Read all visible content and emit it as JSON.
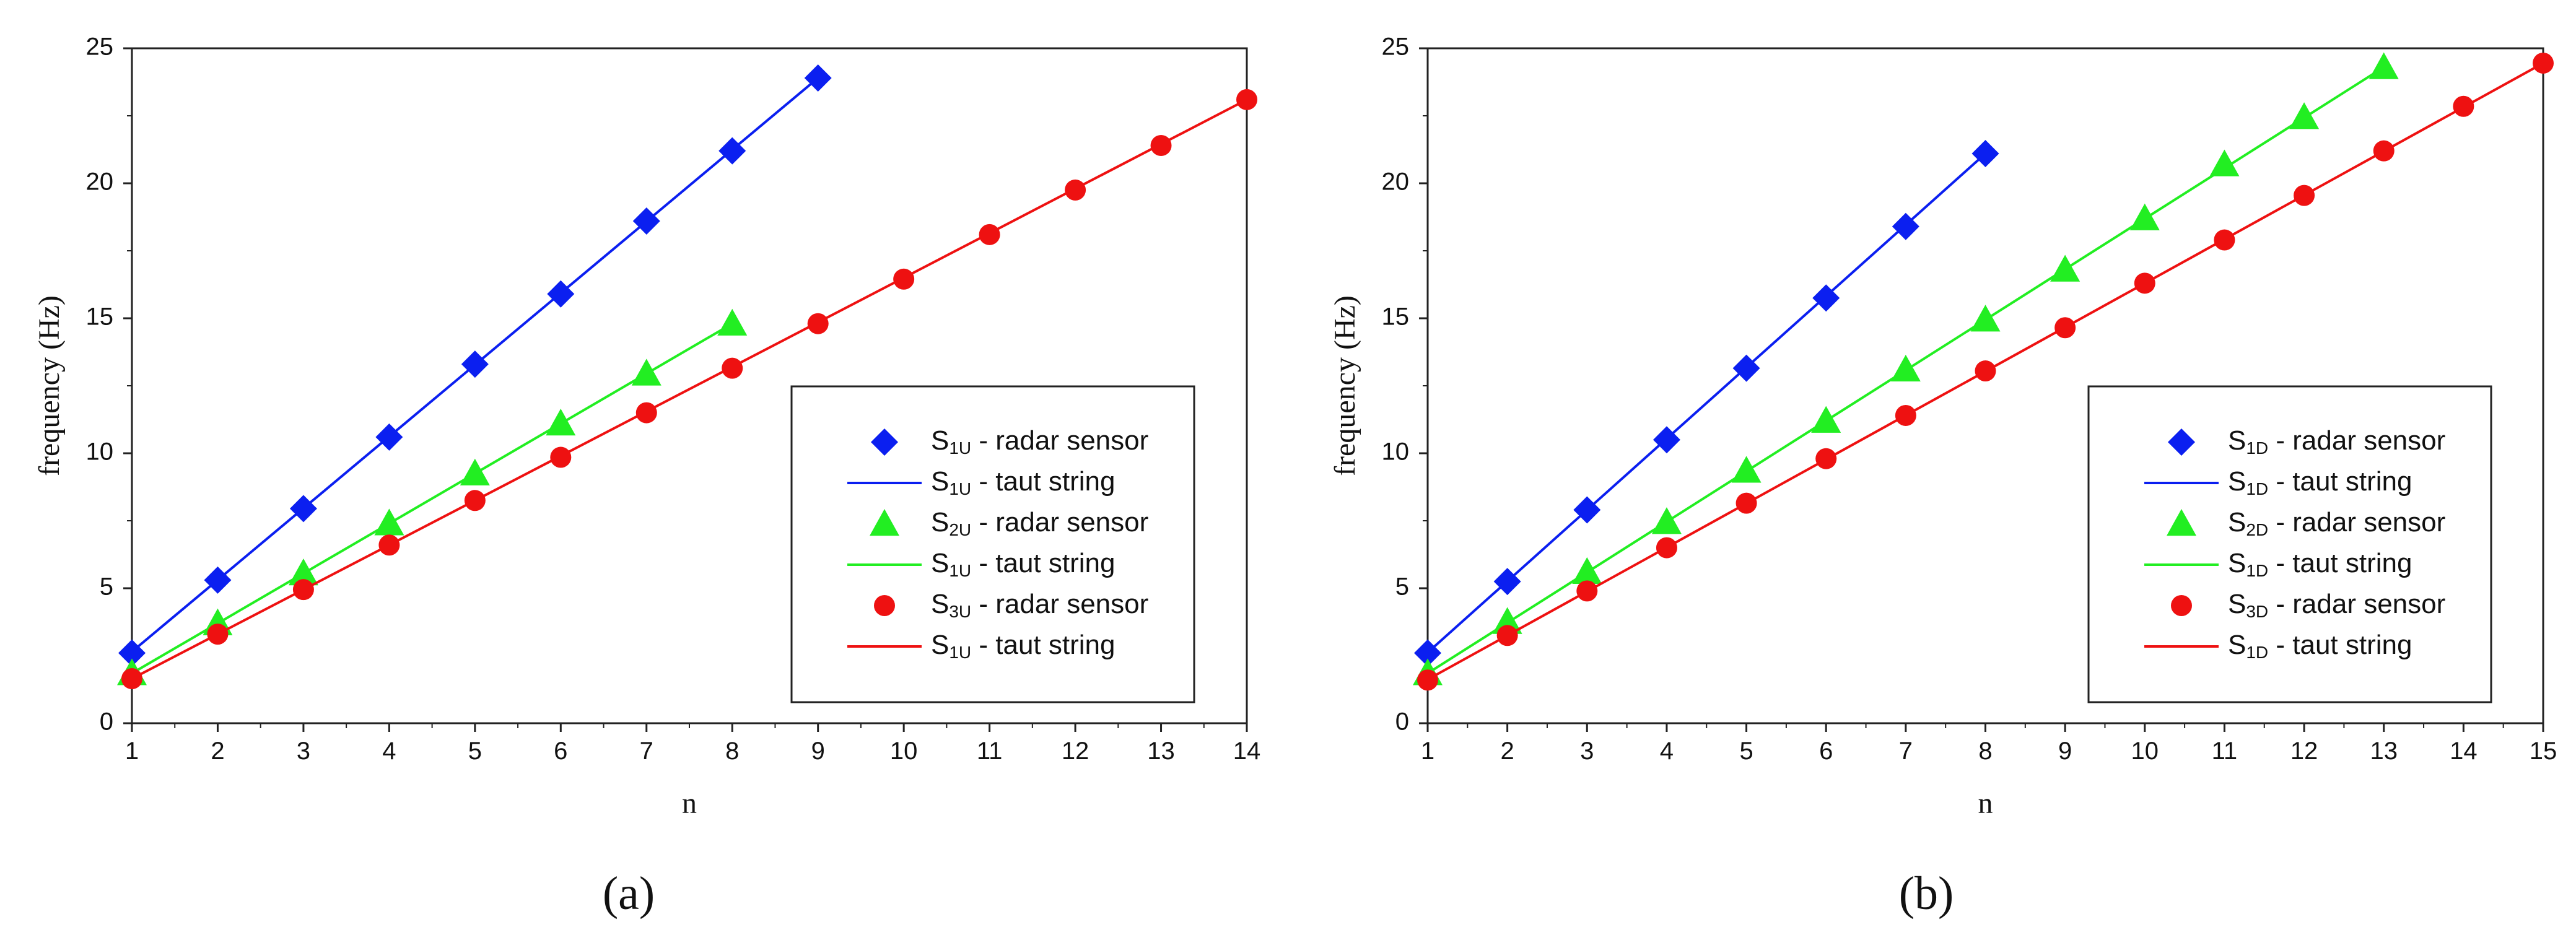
{
  "chart_data": [
    {
      "type": "line",
      "panel_label": "(a)",
      "xlabel": "n",
      "ylabel": "frequency  (Hz)",
      "xlim": [
        1,
        14
      ],
      "ylim": [
        0,
        25
      ],
      "xticks": [
        1,
        2,
        3,
        4,
        5,
        6,
        7,
        8,
        9,
        10,
        11,
        12,
        13,
        14
      ],
      "yticks": [
        0,
        5,
        10,
        15,
        20,
        25
      ],
      "legend_position": "lower-right",
      "series": [
        {
          "id": "s1",
          "color": "#0b1ff0",
          "marker": "diamond",
          "marker_label": {
            "main": "S",
            "sub": "1U",
            "rest": " - radar sensor"
          },
          "line_label": {
            "main": "S",
            "sub": "1U",
            "rest": " - taut string"
          },
          "x": [
            1,
            2,
            3,
            4,
            5,
            6,
            7,
            8,
            9
          ],
          "values": [
            2.6,
            5.3,
            7.95,
            10.6,
            13.3,
            15.9,
            18.6,
            21.2,
            23.9
          ],
          "line": [
            [
              1,
              2.65
            ],
            [
              9,
              23.9
            ]
          ]
        },
        {
          "id": "s2",
          "color": "#22ee22",
          "marker": "triangle",
          "marker_label": {
            "main": "S",
            "sub": "2U",
            "rest": " - radar sensor"
          },
          "line_label": {
            "main": "S",
            "sub": "1U",
            "rest": " - taut string"
          },
          "x": [
            1,
            2,
            3,
            4,
            5,
            6,
            7,
            8
          ],
          "values": [
            1.85,
            3.7,
            5.55,
            7.4,
            9.25,
            11.1,
            12.95,
            14.8
          ],
          "line": [
            [
              1,
              1.85
            ],
            [
              8,
              14.8
            ]
          ]
        },
        {
          "id": "s3",
          "color": "#ee1111",
          "marker": "circle",
          "marker_label": {
            "main": "S",
            "sub": "3U",
            "rest": " - radar sensor"
          },
          "line_label": {
            "main": "S",
            "sub": "1U",
            "rest": " - taut string"
          },
          "x": [
            1,
            2,
            3,
            4,
            5,
            6,
            7,
            8,
            9,
            10,
            11,
            12,
            13,
            14
          ],
          "values": [
            1.65,
            3.3,
            4.95,
            6.6,
            8.25,
            9.85,
            11.5,
            13.15,
            14.8,
            16.45,
            18.1,
            19.75,
            21.4,
            23.1
          ],
          "line": [
            [
              1,
              1.65
            ],
            [
              14,
              23.1
            ]
          ]
        }
      ]
    },
    {
      "type": "line",
      "panel_label": "(b)",
      "xlabel": "n",
      "ylabel": "frequency  (Hz)",
      "xlim": [
        1,
        15
      ],
      "ylim": [
        0,
        25
      ],
      "xticks": [
        1,
        2,
        3,
        4,
        5,
        6,
        7,
        8,
        9,
        10,
        11,
        12,
        13,
        14,
        15
      ],
      "yticks": [
        0,
        5,
        10,
        15,
        20,
        25
      ],
      "legend_position": "lower-right",
      "series": [
        {
          "id": "s1",
          "color": "#0b1ff0",
          "marker": "diamond",
          "marker_label": {
            "main": "S",
            "sub": "1D",
            "rest": " - radar sensor"
          },
          "line_label": {
            "main": "S",
            "sub": "1D",
            "rest": " - taut string"
          },
          "x": [
            1,
            2,
            3,
            4,
            5,
            6,
            7,
            8
          ],
          "values": [
            2.6,
            5.25,
            7.9,
            10.5,
            13.15,
            15.75,
            18.4,
            21.1
          ],
          "line": [
            [
              1,
              2.62
            ],
            [
              8,
              21.1
            ]
          ]
        },
        {
          "id": "s2",
          "color": "#22ee22",
          "marker": "triangle",
          "marker_label": {
            "main": "S",
            "sub": "2D",
            "rest": " - radar sensor"
          },
          "line_label": {
            "main": "S",
            "sub": "1D",
            "rest": " - taut string"
          },
          "x": [
            1,
            2,
            3,
            4,
            5,
            6,
            7,
            8,
            9,
            10,
            11,
            12,
            13
          ],
          "values": [
            1.85,
            3.75,
            5.6,
            7.45,
            9.35,
            11.2,
            13.1,
            14.95,
            16.8,
            18.7,
            20.7,
            22.45,
            24.3
          ],
          "line": [
            [
              1,
              1.85
            ],
            [
              13,
              24.3
            ]
          ]
        },
        {
          "id": "s3",
          "color": "#ee1111",
          "marker": "circle",
          "marker_label": {
            "main": "S",
            "sub": "3D",
            "rest": " - radar sensor"
          },
          "line_label": {
            "main": "S",
            "sub": "1D",
            "rest": " - taut string"
          },
          "x": [
            1,
            2,
            3,
            4,
            5,
            6,
            7,
            8,
            9,
            10,
            11,
            12,
            13,
            14,
            15
          ],
          "values": [
            1.6,
            3.25,
            4.9,
            6.5,
            8.15,
            9.8,
            11.4,
            13.05,
            14.65,
            16.3,
            17.9,
            19.55,
            21.2,
            22.85,
            24.45
          ],
          "line": [
            [
              1,
              1.62
            ],
            [
              15,
              24.45
            ]
          ]
        }
      ]
    }
  ]
}
